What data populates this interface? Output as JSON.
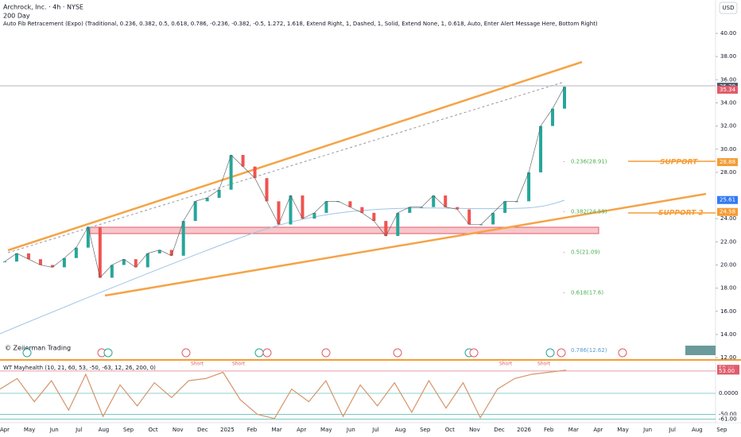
{
  "header": {
    "title": "Archrock, Inc. · 4h · NYSE",
    "line2": "200 Day",
    "line3": "Auto Fib Retracement (Expo) (Traditional, 0.236, 0.382, 0.5, 0.618, 0.786, -0.236, -0.382, -0.5, 1.272, 1.618, Extend Right, 1, Dashed, 1, Solid, Extend None, 1, 0.618, Auto, Enter Alert Message Here, Bottom Right)",
    "currency": "USD"
  },
  "price_axis": {
    "ylim": [
      11.8,
      42.1
    ],
    "yticks": [
      {
        "value": 40,
        "label": "40.00"
      },
      {
        "value": 38,
        "label": "38.00"
      },
      {
        "value": 36,
        "label": "36.00"
      },
      {
        "value": 34,
        "label": "34.00"
      },
      {
        "value": 32,
        "label": "32.00"
      },
      {
        "value": 30,
        "label": "30.00"
      },
      {
        "value": 28,
        "label": "28.00"
      },
      {
        "value": 24,
        "label": "24.00"
      },
      {
        "value": 22,
        "label": "22.00"
      },
      {
        "value": 20,
        "label": "20.00"
      },
      {
        "value": 18,
        "label": "18.00"
      },
      {
        "value": 16,
        "label": "16.00"
      },
      {
        "value": 14,
        "label": "14.00"
      },
      {
        "value": 12,
        "label": "12.00"
      }
    ]
  },
  "price_tags": [
    {
      "value": 35.39,
      "label": "35.39",
      "color": "#4a5568"
    },
    {
      "value": 35.34,
      "label": "35.34",
      "color": "#e05c6a"
    },
    {
      "value": 28.88,
      "label": "28.88",
      "color": "#f59c34"
    },
    {
      "value": 25.61,
      "label": "25.61",
      "color": "#3179f5"
    },
    {
      "value": 24.58,
      "label": "24.58",
      "color": "#f59c34"
    }
  ],
  "time_axis": [
    "Apr",
    "May",
    "Jun",
    "Jul",
    "Aug",
    "Sep",
    "Oct",
    "Nov",
    "Dec",
    "2025",
    "Feb",
    "Mar",
    "Apr",
    "May",
    "Jun",
    "Jul",
    "Aug",
    "Sep",
    "Oct",
    "Nov",
    "Dec",
    "2026",
    "Feb",
    "Mar",
    "Apr",
    "May",
    "Jun",
    "Jul",
    "Aug",
    "Sep"
  ],
  "price": {
    "color": "#26a69a",
    "values": [
      20.3,
      21.0,
      20.5,
      20.0,
      19.8,
      20.6,
      21.5,
      23.3,
      18.9,
      20.0,
      20.5,
      19.8,
      21.0,
      21.3,
      20.8,
      23.8,
      25.5,
      25.8,
      26.5,
      29.5,
      28.5,
      27.5,
      25.5,
      23.5,
      26.0,
      24.0,
      24.5,
      25.5,
      25.5,
      25.0,
      24.5,
      23.8,
      22.5,
      24.5,
      25.0,
      25.0,
      26.0,
      25.0,
      24.8,
      23.5,
      23.5,
      24.5,
      25.5,
      25.5,
      28.0,
      32.0,
      33.5,
      35.39
    ]
  },
  "fib_levels": [
    {
      "value": 28.91,
      "label": "0.236(28.91)"
    },
    {
      "value": 24.59,
      "label": "0.382(24.59)"
    },
    {
      "value": 21.09,
      "label": "0.5(21.09)"
    },
    {
      "value": 17.6,
      "label": "0.618(17.6)"
    },
    {
      "value": 12.62,
      "label": "0.786(12.62)"
    }
  ],
  "annotations": {
    "support": "SUPPORT",
    "support2": "SUPPORT 2",
    "credit": "© Zeiierman Trading"
  },
  "oscillator": {
    "title": "WT Mayhealth (10, 21, 60, 53, -50, -63, 12, 26, 200, 0)",
    "ylim": [
      -66,
      66
    ],
    "axis_labels": [
      {
        "value": 59,
        "label": "59.xx"
      },
      {
        "value": 53,
        "label": "53.00"
      },
      {
        "value": 0,
        "label": "0.0000"
      },
      {
        "value": -50,
        "label": "-50.00"
      },
      {
        "value": -61,
        "label": "-61.00"
      }
    ],
    "signal": "Short",
    "values": [
      10,
      35,
      -20,
      30,
      -40,
      45,
      -55,
      20,
      -30,
      25,
      -10,
      30,
      35,
      50,
      -15,
      -50,
      -60,
      10,
      -20,
      30,
      -55,
      20,
      -30,
      25,
      -45,
      30,
      -35,
      25,
      -58,
      10,
      35,
      45,
      50,
      55
    ]
  }
}
